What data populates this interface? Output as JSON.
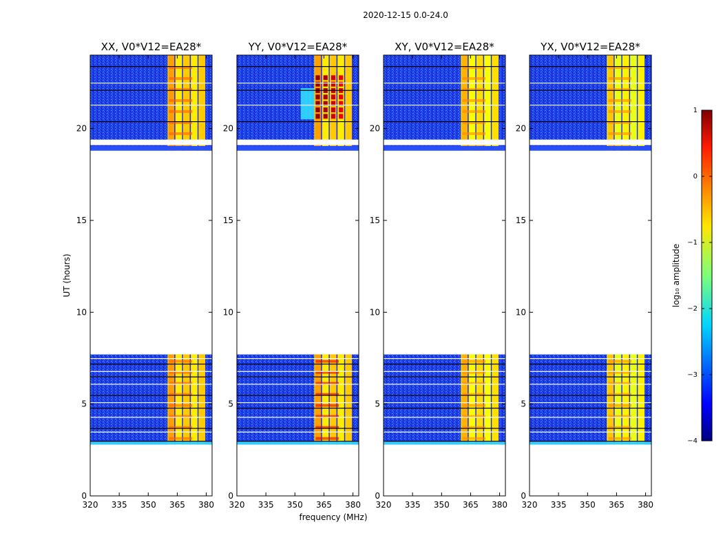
{
  "chart_data": {
    "type": "heatmap",
    "title": "2020-12-15 0.0-24.0",
    "xlabel": "frequency (MHz)",
    "ylabel": "UT (hours)",
    "xlim": [
      320,
      383
    ],
    "ylim": [
      0,
      24
    ],
    "xticks": [
      320,
      335,
      350,
      365,
      380
    ],
    "yticks": [
      0,
      5,
      10,
      15,
      20
    ],
    "data_time_ranges_hours": [
      [
        2.8,
        7.7
      ],
      [
        18.8,
        24.0
      ]
    ],
    "flagged_gap_hours": [
      [
        19.1,
        19.4
      ]
    ],
    "strong_emission_band_mhz": [
      360,
      380
    ],
    "panels": [
      {
        "title": "XX, V0*V12=EA28*",
        "background_log_amp": -3.5,
        "band_log_amp": -0.7,
        "peak_log_amp": 0.3,
        "band_start_mhz": 360,
        "late_flare": false
      },
      {
        "title": "YY, V0*V12=EA28*",
        "background_log_amp": -3.5,
        "band_log_amp": -0.7,
        "peak_log_amp": 0.9,
        "band_start_mhz": 360,
        "late_flare": true
      },
      {
        "title": "XY, V0*V12=EA28*",
        "background_log_amp": -3.4,
        "band_log_amp": -0.8,
        "peak_log_amp": 0.1,
        "band_start_mhz": 360,
        "late_flare": false
      },
      {
        "title": "YX, V0*V12=EA28*",
        "background_log_amp": -3.4,
        "band_log_amp": -0.9,
        "peak_log_amp": 0.1,
        "band_start_mhz": 360,
        "late_flare": false
      }
    ],
    "colorbar": {
      "label": "log₁₀ amplitude",
      "range": [
        -4,
        1
      ],
      "ticks": [
        "1",
        "0",
        "−1",
        "−2",
        "−3",
        "−4"
      ],
      "colormap": "jet"
    }
  }
}
